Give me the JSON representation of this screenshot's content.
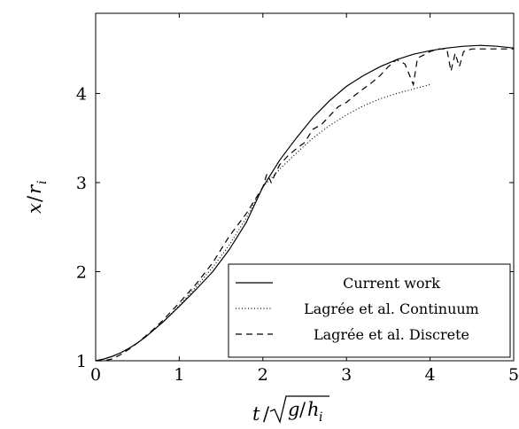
{
  "chart_data": {
    "type": "line",
    "xlabel_parts": {
      "t": "t",
      "sep": "/",
      "g": "g",
      "slash": "/",
      "h": "h",
      "sub": "i"
    },
    "ylabel_parts": {
      "x": "x",
      "sep": "/",
      "r": "r",
      "sub": "i"
    },
    "xlim": [
      0,
      5
    ],
    "ylim": [
      1,
      4.9
    ],
    "xticks": [
      0,
      1,
      2,
      3,
      4,
      5
    ],
    "yticks": [
      1,
      2,
      3,
      4
    ],
    "grid": false,
    "legend_position": "bottom-right",
    "series": [
      {
        "name": "Current work",
        "style": "solid",
        "x": [
          0,
          0.1,
          0.2,
          0.3,
          0.4,
          0.5,
          0.6,
          0.7,
          0.8,
          0.9,
          1.0,
          1.2,
          1.4,
          1.6,
          1.8,
          2.0,
          2.2,
          2.4,
          2.6,
          2.8,
          3.0,
          3.2,
          3.4,
          3.6,
          3.8,
          4.0,
          4.2,
          4.4,
          4.6,
          4.8,
          5.0
        ],
        "y": [
          1.0,
          1.02,
          1.05,
          1.09,
          1.14,
          1.2,
          1.27,
          1.35,
          1.43,
          1.52,
          1.61,
          1.8,
          2.0,
          2.25,
          2.55,
          2.95,
          3.25,
          3.5,
          3.73,
          3.92,
          4.08,
          4.2,
          4.3,
          4.38,
          4.44,
          4.48,
          4.51,
          4.53,
          4.54,
          4.53,
          4.51
        ]
      },
      {
        "name": "Lagrée et al. Continuum",
        "style": "dotted",
        "x": [
          0,
          0.1,
          0.2,
          0.3,
          0.4,
          0.5,
          0.6,
          0.7,
          0.8,
          0.9,
          1.0,
          1.2,
          1.4,
          1.6,
          1.8,
          2.0,
          2.2,
          2.4,
          2.6,
          2.8,
          3.0,
          3.2,
          3.4,
          3.6,
          3.8,
          4.0
        ],
        "y": [
          1.0,
          1.02,
          1.05,
          1.09,
          1.14,
          1.2,
          1.27,
          1.35,
          1.43,
          1.52,
          1.62,
          1.83,
          2.05,
          2.3,
          2.6,
          2.95,
          3.15,
          3.33,
          3.5,
          3.64,
          3.76,
          3.86,
          3.94,
          4.0,
          4.05,
          4.1
        ]
      },
      {
        "name": "Lagrée et al. Discrete",
        "style": "dashed",
        "x": [
          0,
          0.1,
          0.2,
          0.3,
          0.4,
          0.5,
          0.6,
          0.7,
          0.8,
          0.9,
          1.0,
          1.2,
          1.4,
          1.6,
          1.8,
          1.9,
          2.0,
          2.05,
          2.1,
          2.2,
          2.3,
          2.4,
          2.5,
          2.6,
          2.7,
          2.8,
          2.9,
          3.0,
          3.1,
          3.2,
          3.3,
          3.4,
          3.5,
          3.6,
          3.7,
          3.8,
          3.85,
          3.9,
          4.0,
          4.1,
          4.2,
          4.25,
          4.3,
          4.35,
          4.4,
          4.5,
          4.6,
          4.7,
          4.8,
          4.9,
          5.0
        ],
        "y": [
          1.0,
          1.0,
          1.02,
          1.07,
          1.13,
          1.2,
          1.28,
          1.36,
          1.45,
          1.55,
          1.65,
          1.86,
          2.1,
          2.4,
          2.65,
          2.8,
          2.95,
          3.1,
          3.0,
          3.2,
          3.3,
          3.38,
          3.45,
          3.6,
          3.65,
          3.75,
          3.85,
          3.9,
          3.98,
          4.05,
          4.12,
          4.2,
          4.3,
          4.38,
          4.33,
          4.1,
          4.4,
          4.42,
          4.47,
          4.5,
          4.5,
          4.25,
          4.45,
          4.3,
          4.47,
          4.5,
          4.5,
          4.5,
          4.5,
          4.5,
          4.5
        ]
      }
    ]
  }
}
